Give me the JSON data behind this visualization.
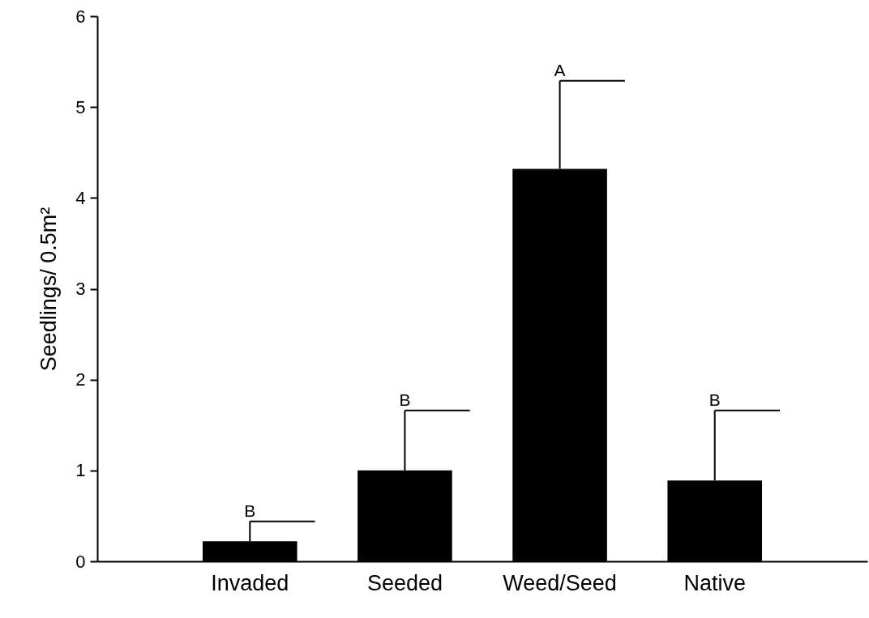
{
  "chart_data": {
    "type": "bar",
    "ylabel": "Seedlings/ 0.5m²",
    "categories": [
      "Invaded",
      "Seeded",
      "Weed/Seed",
      "Native"
    ],
    "values": [
      0.22,
      1.0,
      4.32,
      0.89
    ],
    "errors": [
      [
        0.22,
        0.44
      ],
      [
        1.0,
        1.66
      ],
      [
        4.32,
        5.29
      ],
      [
        0.89,
        1.66
      ]
    ],
    "color": "#000000",
    "ylim": [
      0,
      6
    ],
    "yticks": [
      0,
      1,
      2,
      3,
      4,
      5,
      6
    ],
    "grid": false,
    "annotations": [
      {
        "text": "B",
        "x": "Invaded",
        "y": 0.44
      },
      {
        "text": "B",
        "x": "Seeded",
        "y": 1.66
      },
      {
        "text": "A",
        "x": "Weed/Seed",
        "y": 5.29
      },
      {
        "text": "B",
        "x": "Native",
        "y": 1.66
      }
    ]
  }
}
